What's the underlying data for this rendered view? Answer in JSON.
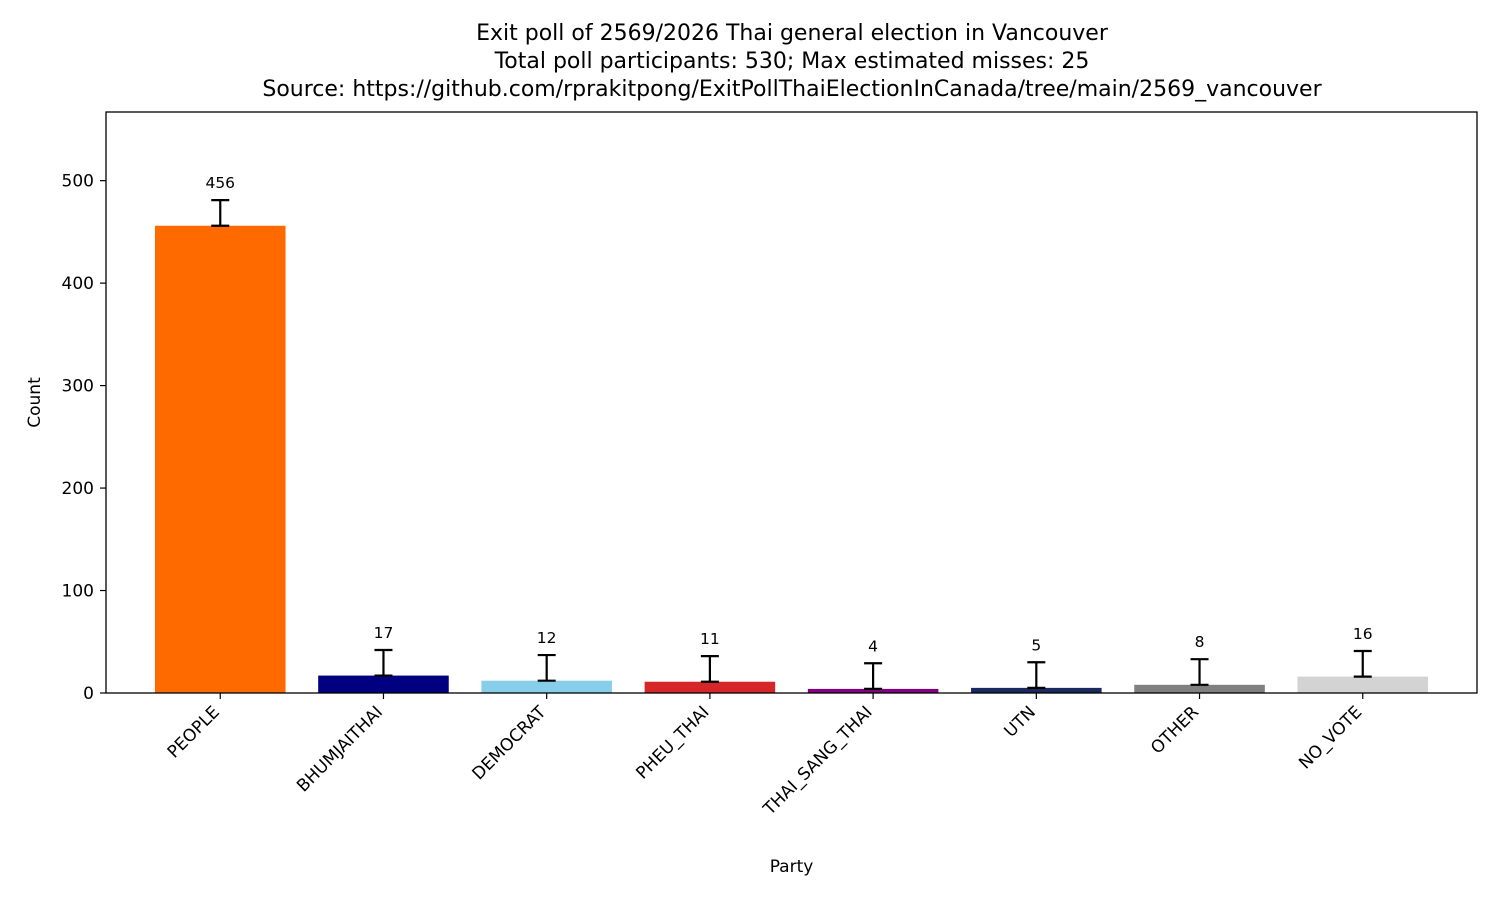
{
  "chart_data": {
    "type": "bar",
    "title_lines": [
      "Exit poll of 2569/2026 Thai general election in Vancouver",
      "Total poll participants: 530; Max estimated misses: 25",
      "Source: https://github.com/rprakitpong/ExitPollThaiElectionInCanada/tree/main/2569_vancouver"
    ],
    "xlabel": "Party",
    "ylabel": "Count",
    "ylim": [
      0,
      567
    ],
    "yticks": [
      0,
      100,
      200,
      300,
      400,
      500
    ],
    "categories": [
      "PEOPLE",
      "BHUMJAITHAI",
      "DEMOCRAT",
      "PHEU_THAI",
      "THAI_SANG_THAI",
      "UTN",
      "OTHER",
      "NO_VOTE"
    ],
    "values": [
      456,
      17,
      12,
      11,
      4,
      5,
      8,
      16
    ],
    "error_upper": [
      25,
      25,
      25,
      25,
      25,
      25,
      25,
      25
    ],
    "colors": [
      "#ff6a00",
      "#000080",
      "#87ceeb",
      "#d62728",
      "#800080",
      "#1a2a5e",
      "#808080",
      "#d3d3d3"
    ],
    "grid": false,
    "legend": "none"
  }
}
